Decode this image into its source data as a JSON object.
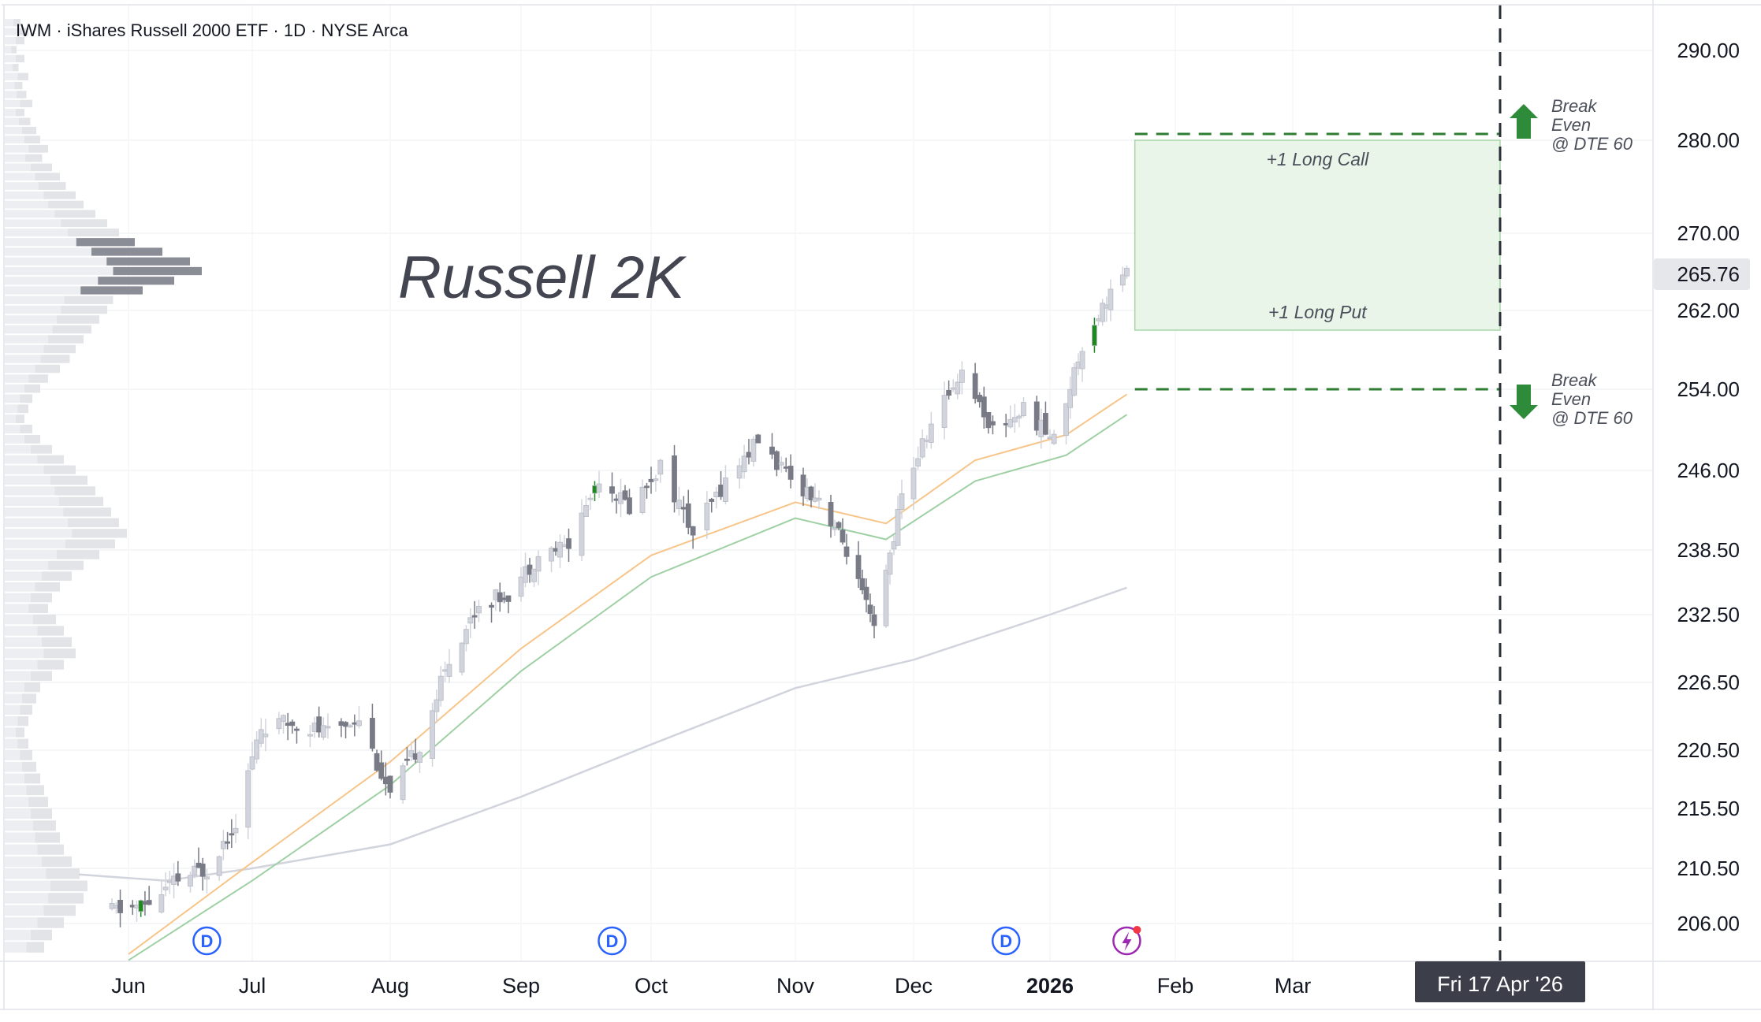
{
  "header": {
    "symbol_line": "IWM · iShares Russell 2000 ETF · 1D · NYSE Arca"
  },
  "annotation_title": "Russell 2K",
  "colors": {
    "candle_up": "#d1d4dc",
    "candle_down": "#787b86",
    "candle_highlight": "#1e8a1e",
    "ema_fast": "#f7c58a",
    "ema_slow": "#9fd0a4",
    "sma_long": "#d1d4dc",
    "zone_fill": "#eaf5ea",
    "zone_border": "#a8d5a8",
    "breakeven_line": "#2e7d32",
    "arrow": "#2e8b3a",
    "dividend_badge": "#2962ff",
    "earnings_badge": "#9c27b0",
    "volume_profile_light": "#e3e4e8",
    "volume_profile_dark": "#8a8d96"
  },
  "chart_data": {
    "type": "candlestick",
    "title": "IWM · iShares Russell 2000 ETF · 1D · NYSE Arca",
    "ylim": [
      203,
      294
    ],
    "y_ticks": [
      "290.00",
      "280.00",
      "270.00",
      "262.00",
      "254.00",
      "246.00",
      "238.50",
      "232.50",
      "226.50",
      "220.50",
      "215.50",
      "210.50",
      "206.00"
    ],
    "x_ticks": [
      "Jun",
      "Jul",
      "Aug",
      "Sep",
      "Oct",
      "Nov",
      "Dec",
      "2026",
      "Feb",
      "Mar"
    ],
    "x_ticks_bold": [
      "2026"
    ],
    "last_price": "265.76",
    "date_badge": "Fri 17 Apr '26",
    "close_series": [
      {
        "date": "2025-05-28",
        "close": 207.0
      },
      {
        "date": "2025-06-05",
        "close": 207.5
      },
      {
        "date": "2025-06-13",
        "close": 209.5
      },
      {
        "date": "2025-06-20",
        "close": 210.5
      },
      {
        "date": "2025-06-27",
        "close": 214.5
      },
      {
        "date": "2025-07-03",
        "close": 222.5
      },
      {
        "date": "2025-07-11",
        "close": 223.0
      },
      {
        "date": "2025-07-18",
        "close": 222.0
      },
      {
        "date": "2025-07-25",
        "close": 223.5
      },
      {
        "date": "2025-08-01",
        "close": 216.5
      },
      {
        "date": "2025-08-08",
        "close": 221.0
      },
      {
        "date": "2025-08-15",
        "close": 228.5
      },
      {
        "date": "2025-08-22",
        "close": 233.5
      },
      {
        "date": "2025-08-29",
        "close": 234.5
      },
      {
        "date": "2025-09-05",
        "close": 238.0
      },
      {
        "date": "2025-09-12",
        "close": 239.0
      },
      {
        "date": "2025-09-19",
        "close": 245.5
      },
      {
        "date": "2025-09-26",
        "close": 242.5
      },
      {
        "date": "2025-10-03",
        "close": 246.5
      },
      {
        "date": "2025-10-10",
        "close": 240.0
      },
      {
        "date": "2025-10-17",
        "close": 245.0
      },
      {
        "date": "2025-10-24",
        "close": 249.0
      },
      {
        "date": "2025-10-31",
        "close": 245.0
      },
      {
        "date": "2025-11-07",
        "close": 243.5
      },
      {
        "date": "2025-11-14",
        "close": 238.5
      },
      {
        "date": "2025-11-21",
        "close": 231.0
      },
      {
        "date": "2025-11-28",
        "close": 243.5
      },
      {
        "date": "2025-12-05",
        "close": 250.5
      },
      {
        "date": "2025-12-12",
        "close": 256.0
      },
      {
        "date": "2025-12-19",
        "close": 250.0
      },
      {
        "date": "2025-12-26",
        "close": 252.0
      },
      {
        "date": "2026-01-02",
        "close": 249.0
      },
      {
        "date": "2026-01-09",
        "close": 258.5
      },
      {
        "date": "2026-01-16",
        "close": 264.0
      },
      {
        "date": "2026-01-20",
        "close": 265.76
      }
    ],
    "ema_fast_approx": [
      {
        "date": "2025-06-01",
        "value": 203.5
      },
      {
        "date": "2025-07-01",
        "value": 211.0
      },
      {
        "date": "2025-08-01",
        "value": 219.5
      },
      {
        "date": "2025-09-01",
        "value": 229.5
      },
      {
        "date": "2025-10-01",
        "value": 238.0
      },
      {
        "date": "2025-11-01",
        "value": 243.0
      },
      {
        "date": "2025-11-24",
        "value": 241.0
      },
      {
        "date": "2025-12-15",
        "value": 247.0
      },
      {
        "date": "2026-01-05",
        "value": 249.5
      },
      {
        "date": "2026-01-20",
        "value": 253.5
      }
    ],
    "ema_slow_approx": [
      {
        "date": "2025-06-01",
        "value": 203.0
      },
      {
        "date": "2025-07-01",
        "value": 209.5
      },
      {
        "date": "2025-08-01",
        "value": 217.5
      },
      {
        "date": "2025-09-01",
        "value": 227.5
      },
      {
        "date": "2025-10-01",
        "value": 236.0
      },
      {
        "date": "2025-11-01",
        "value": 241.5
      },
      {
        "date": "2025-11-24",
        "value": 239.5
      },
      {
        "date": "2025-12-15",
        "value": 245.0
      },
      {
        "date": "2026-01-05",
        "value": 247.5
      },
      {
        "date": "2026-01-20",
        "value": 251.5
      }
    ],
    "sma_long_approx": [
      {
        "date": "2025-05-20",
        "value": 210.0
      },
      {
        "date": "2025-06-10",
        "value": 209.5
      },
      {
        "date": "2025-07-01",
        "value": 210.5
      },
      {
        "date": "2025-08-01",
        "value": 212.5
      },
      {
        "date": "2025-09-01",
        "value": 216.5
      },
      {
        "date": "2025-10-01",
        "value": 221.0
      },
      {
        "date": "2025-11-01",
        "value": 226.0
      },
      {
        "date": "2025-12-01",
        "value": 228.5
      },
      {
        "date": "2026-01-01",
        "value": 232.5
      },
      {
        "date": "2026-01-20",
        "value": 235.0
      }
    ],
    "position_zone": {
      "upper_label": "+1 Long Call",
      "lower_label": "+1 Long Put",
      "top_price": 280.0,
      "bottom_price": 260.0,
      "start_date": "2026-01-22",
      "end_date": "2026-04-17"
    },
    "breakeven_upper": {
      "price": 280.7,
      "label_lines": [
        "Break",
        "Even",
        "@ DTE 60"
      ]
    },
    "breakeven_lower": {
      "price": 254.0,
      "label_lines": [
        "Break",
        "Even",
        "@ DTE 60"
      ]
    },
    "dividend_markers": [
      {
        "date": "2025-06-20",
        "label": "D"
      },
      {
        "date": "2025-09-22",
        "label": "D"
      },
      {
        "date": "2025-12-22",
        "label": "D"
      }
    ],
    "earnings_marker": {
      "date": "2026-01-20"
    },
    "volume_profile": [
      [
        293.0,
        0.08,
        0
      ],
      [
        292.0,
        0.12,
        0
      ],
      [
        291.0,
        0.1,
        0
      ],
      [
        290.0,
        0.06,
        0
      ],
      [
        289.0,
        0.1,
        0
      ],
      [
        288.0,
        0.07,
        0
      ],
      [
        287.0,
        0.12,
        0
      ],
      [
        286.0,
        0.09,
        0
      ],
      [
        285.0,
        0.11,
        0
      ],
      [
        284.0,
        0.14,
        0
      ],
      [
        283.0,
        0.1,
        0
      ],
      [
        282.0,
        0.13,
        0
      ],
      [
        281.0,
        0.16,
        0
      ],
      [
        280.0,
        0.18,
        0
      ],
      [
        279.0,
        0.22,
        0
      ],
      [
        278.0,
        0.19,
        0
      ],
      [
        277.0,
        0.24,
        0
      ],
      [
        276.0,
        0.28,
        0
      ],
      [
        275.0,
        0.31,
        0
      ],
      [
        274.0,
        0.36,
        0
      ],
      [
        273.0,
        0.4,
        0
      ],
      [
        272.0,
        0.46,
        0
      ],
      [
        271.0,
        0.52,
        0
      ],
      [
        270.0,
        0.58,
        0
      ],
      [
        269.0,
        0.66,
        1
      ],
      [
        268.0,
        0.8,
        1
      ],
      [
        267.0,
        0.94,
        1
      ],
      [
        266.0,
        1.0,
        1
      ],
      [
        265.0,
        0.86,
        1
      ],
      [
        264.0,
        0.7,
        1
      ],
      [
        263.0,
        0.55,
        0
      ],
      [
        262.0,
        0.52,
        0
      ],
      [
        261.0,
        0.48,
        0
      ],
      [
        260.0,
        0.44,
        0
      ],
      [
        259.0,
        0.4,
        0
      ],
      [
        258.0,
        0.36,
        0
      ],
      [
        257.0,
        0.33,
        0
      ],
      [
        256.0,
        0.28,
        0
      ],
      [
        255.0,
        0.22,
        0
      ],
      [
        254.0,
        0.18,
        0
      ],
      [
        253.0,
        0.14,
        0
      ],
      [
        252.0,
        0.12,
        0
      ],
      [
        251.0,
        0.1,
        0
      ],
      [
        250.0,
        0.14,
        0
      ],
      [
        249.0,
        0.18,
        0
      ],
      [
        248.0,
        0.24,
        0
      ],
      [
        247.0,
        0.3,
        0
      ],
      [
        246.0,
        0.36,
        0
      ],
      [
        245.0,
        0.42,
        0
      ],
      [
        244.0,
        0.46,
        0
      ],
      [
        243.0,
        0.5,
        0
      ],
      [
        242.0,
        0.54,
        0
      ],
      [
        241.0,
        0.58,
        0
      ],
      [
        240.0,
        0.62,
        0
      ],
      [
        239.0,
        0.56,
        0
      ],
      [
        238.0,
        0.48,
        0
      ],
      [
        237.0,
        0.4,
        0
      ],
      [
        236.0,
        0.34,
        0
      ],
      [
        235.0,
        0.28,
        0
      ],
      [
        234.0,
        0.24,
        0
      ],
      [
        233.0,
        0.22,
        0
      ],
      [
        232.0,
        0.26,
        0
      ],
      [
        231.0,
        0.3,
        0
      ],
      [
        230.0,
        0.34,
        0
      ],
      [
        229.0,
        0.36,
        0
      ],
      [
        228.0,
        0.3,
        0
      ],
      [
        227.0,
        0.24,
        0
      ],
      [
        226.0,
        0.18,
        0
      ],
      [
        225.0,
        0.16,
        0
      ],
      [
        224.0,
        0.14,
        0
      ],
      [
        223.0,
        0.12,
        0
      ],
      [
        222.0,
        0.1,
        0
      ],
      [
        221.0,
        0.12,
        0
      ],
      [
        220.0,
        0.14,
        0
      ],
      [
        219.0,
        0.16,
        0
      ],
      [
        218.0,
        0.18,
        0
      ],
      [
        217.0,
        0.2,
        0
      ],
      [
        216.0,
        0.22,
        0
      ],
      [
        215.0,
        0.24,
        0
      ],
      [
        214.0,
        0.26,
        0
      ],
      [
        213.0,
        0.28,
        0
      ],
      [
        212.0,
        0.3,
        0
      ],
      [
        211.0,
        0.34,
        0
      ],
      [
        210.0,
        0.38,
        0
      ],
      [
        209.0,
        0.42,
        0
      ],
      [
        208.0,
        0.4,
        0
      ],
      [
        207.0,
        0.36,
        0
      ],
      [
        206.0,
        0.3,
        0
      ],
      [
        205.0,
        0.24,
        0
      ],
      [
        204.0,
        0.2,
        0
      ]
    ]
  }
}
